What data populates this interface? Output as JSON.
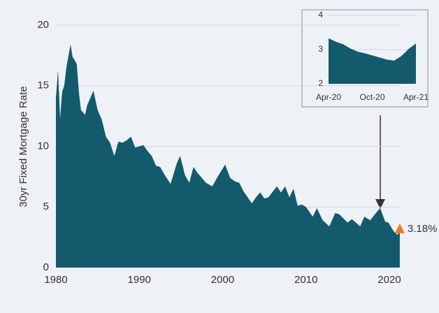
{
  "chart_data": [
    {
      "type": "area",
      "y_label": "30yr Fixed Mortgage Rate",
      "color": "#135a6c",
      "x": [
        1980.0,
        1980.25,
        1980.5,
        1980.75,
        1981.0,
        1981.25,
        1981.75,
        1982.0,
        1982.5,
        1982.75,
        1983.0,
        1983.5,
        1983.75,
        1984.5,
        1985.0,
        1985.5,
        1986.0,
        1986.5,
        1987.0,
        1987.5,
        1988.0,
        1988.5,
        1989.0,
        1989.5,
        1990.0,
        1990.5,
        1991.0,
        1991.5,
        1992.0,
        1992.5,
        1993.0,
        1993.75,
        1994.5,
        1994.9,
        1995.5,
        1996.0,
        1996.5,
        1997.0,
        1997.5,
        1998.0,
        1998.75,
        1999.5,
        2000.3,
        2000.9,
        2001.5,
        2002.0,
        2002.5,
        2003.5,
        2004.0,
        2004.5,
        2005.0,
        2005.5,
        2006.5,
        2007.0,
        2007.5,
        2008.0,
        2008.5,
        2009.0,
        2009.5,
        2010.0,
        2010.8,
        2011.3,
        2012.0,
        2012.8,
        2013.5,
        2014.0,
        2015.0,
        2015.5,
        2016.5,
        2017.0,
        2017.7,
        2018.5,
        2018.9,
        2019.5,
        2019.9,
        2020.5,
        2021.0,
        2021.25
      ],
      "values": [
        14.0,
        16.3,
        12.3,
        14.5,
        15.0,
        16.5,
        18.4,
        17.4,
        16.8,
        14.5,
        13.0,
        12.6,
        13.4,
        14.6,
        13.0,
        12.2,
        10.8,
        10.3,
        9.2,
        10.4,
        10.3,
        10.5,
        10.8,
        9.9,
        10.0,
        10.1,
        9.6,
        9.2,
        8.4,
        8.3,
        7.7,
        6.9,
        8.6,
        9.2,
        7.6,
        7.0,
        8.3,
        7.8,
        7.4,
        7.0,
        6.7,
        7.6,
        8.5,
        7.4,
        7.1,
        7.0,
        6.3,
        5.3,
        5.8,
        6.2,
        5.7,
        5.8,
        6.7,
        6.2,
        6.7,
        5.8,
        6.5,
        5.1,
        5.2,
        5.0,
        4.2,
        4.9,
        3.9,
        3.4,
        4.5,
        4.4,
        3.7,
        4.0,
        3.4,
        4.2,
        3.9,
        4.6,
        4.9,
        3.8,
        3.7,
        3.0,
        2.7,
        3.18
      ],
      "xlim": [
        1980,
        2021.3
      ],
      "xticks": [
        1980,
        1990,
        2000,
        2010,
        2020
      ],
      "ylim": [
        0,
        20
      ],
      "yticks": [
        0,
        5,
        10,
        15,
        20
      ],
      "grid": true,
      "annotation": {
        "x": 2021.25,
        "value": 3.18,
        "label": "3.18%",
        "color": "#ee7a1e"
      }
    },
    {
      "type": "area",
      "color": "#135a6c",
      "categories": [
        "Apr-20",
        null,
        null,
        null,
        null,
        null,
        "Oct-20",
        null,
        null,
        null,
        null,
        null,
        "Apr-21"
      ],
      "values": [
        3.33,
        3.23,
        3.16,
        3.03,
        2.94,
        2.89,
        2.83,
        2.77,
        2.71,
        2.68,
        2.81,
        3.02,
        3.18
      ],
      "ylim": [
        2,
        4
      ],
      "yticks": [
        2,
        3,
        4
      ],
      "grid": true
    }
  ]
}
